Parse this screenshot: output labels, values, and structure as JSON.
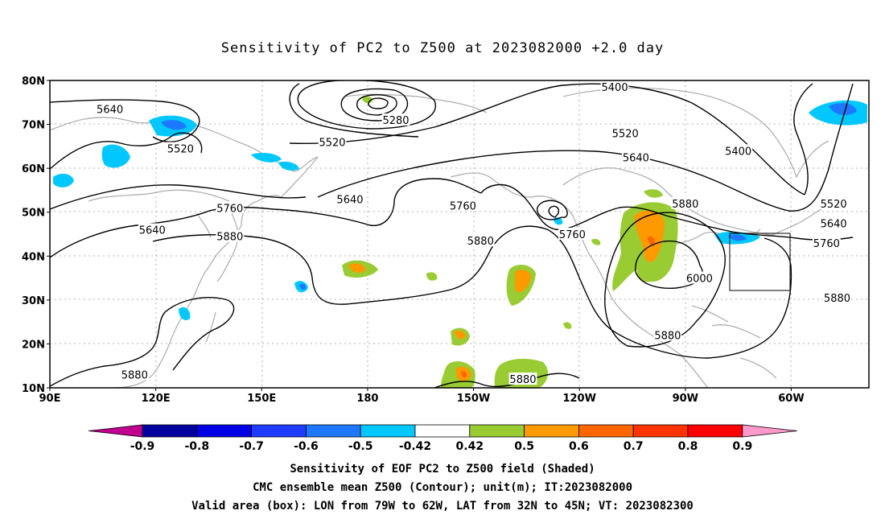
{
  "title": "Sensitivity of PC2 to Z500 at 2023082000 +2.0 day",
  "map": {
    "lon_labels": [
      "90E",
      "120E",
      "150E",
      "180",
      "150W",
      "120W",
      "90W",
      "60W"
    ],
    "lat_labels": [
      "80N",
      "70N",
      "60N",
      "50N",
      "40N",
      "30N",
      "20N",
      "10N"
    ],
    "extent": {
      "lon_min_east": 90,
      "lon_max_east": 322,
      "lat_min": 10,
      "lat_max": 80
    },
    "contour_labels": [
      {
        "text": "5640",
        "lon": 107,
        "lat": 73.5
      },
      {
        "text": "5520",
        "lon": 127,
        "lat": 64.5
      },
      {
        "text": "5280",
        "lon": 188,
        "lat": 71
      },
      {
        "text": "5400",
        "lon": 250,
        "lat": 78.5
      },
      {
        "text": "5520",
        "lon": 253,
        "lat": 68
      },
      {
        "text": "5640",
        "lon": 256,
        "lat": 62.5
      },
      {
        "text": "5400",
        "lon": 285,
        "lat": 64
      },
      {
        "text": "5520",
        "lon": 170,
        "lat": 66
      },
      {
        "text": "5640",
        "lon": 175,
        "lat": 53
      },
      {
        "text": "5760",
        "lon": 207,
        "lat": 51.5
      },
      {
        "text": "5760",
        "lon": 238,
        "lat": 45
      },
      {
        "text": "5880",
        "lon": 212,
        "lat": 43.5
      },
      {
        "text": "5760",
        "lon": 141,
        "lat": 51
      },
      {
        "text": "5880",
        "lon": 141,
        "lat": 44.5
      },
      {
        "text": "5640",
        "lon": 119,
        "lat": 46
      },
      {
        "text": "5880",
        "lon": 270,
        "lat": 52
      },
      {
        "text": "6000",
        "lon": 274,
        "lat": 35
      },
      {
        "text": "5880",
        "lon": 265,
        "lat": 22
      },
      {
        "text": "5520",
        "lon": 312,
        "lat": 52
      },
      {
        "text": "5640",
        "lon": 312,
        "lat": 47.5
      },
      {
        "text": "5760",
        "lon": 310,
        "lat": 43
      },
      {
        "text": "5880",
        "lon": 313,
        "lat": 30.5
      },
      {
        "text": "5880",
        "lon": 114,
        "lat": 13
      },
      {
        "text": "5880",
        "lon": 224,
        "lat": 12
      }
    ],
    "valid_box": {
      "lon_w": 79,
      "lon_e": 62,
      "lat_s": 32,
      "lat_n": 45
    }
  },
  "colorbar": {
    "labels": [
      "-0.9",
      "-0.8",
      "-0.7",
      "-0.6",
      "-0.5",
      "-0.42",
      "0.42",
      "0.5",
      "0.6",
      "0.7",
      "0.8",
      "0.9"
    ],
    "colors": [
      "#c0008f",
      "#0000a0",
      "#0000e6",
      "#1e3cff",
      "#1e78ff",
      "#00c8ff",
      "#ffffff",
      "#99cc33",
      "#ff9900",
      "#ff6600",
      "#ff3300",
      "#ff0000",
      "#ff99cc"
    ]
  },
  "caption": {
    "line1": "Sensitivity of EOF PC2 to Z500 field (Shaded)",
    "line2": "CMC ensemble mean Z500 (Contour); unit(m); IT:2023082000",
    "line3": "Valid area (box): LON from 79W to 62W, LAT from 32N to 45N; VT: 2023082300"
  }
}
